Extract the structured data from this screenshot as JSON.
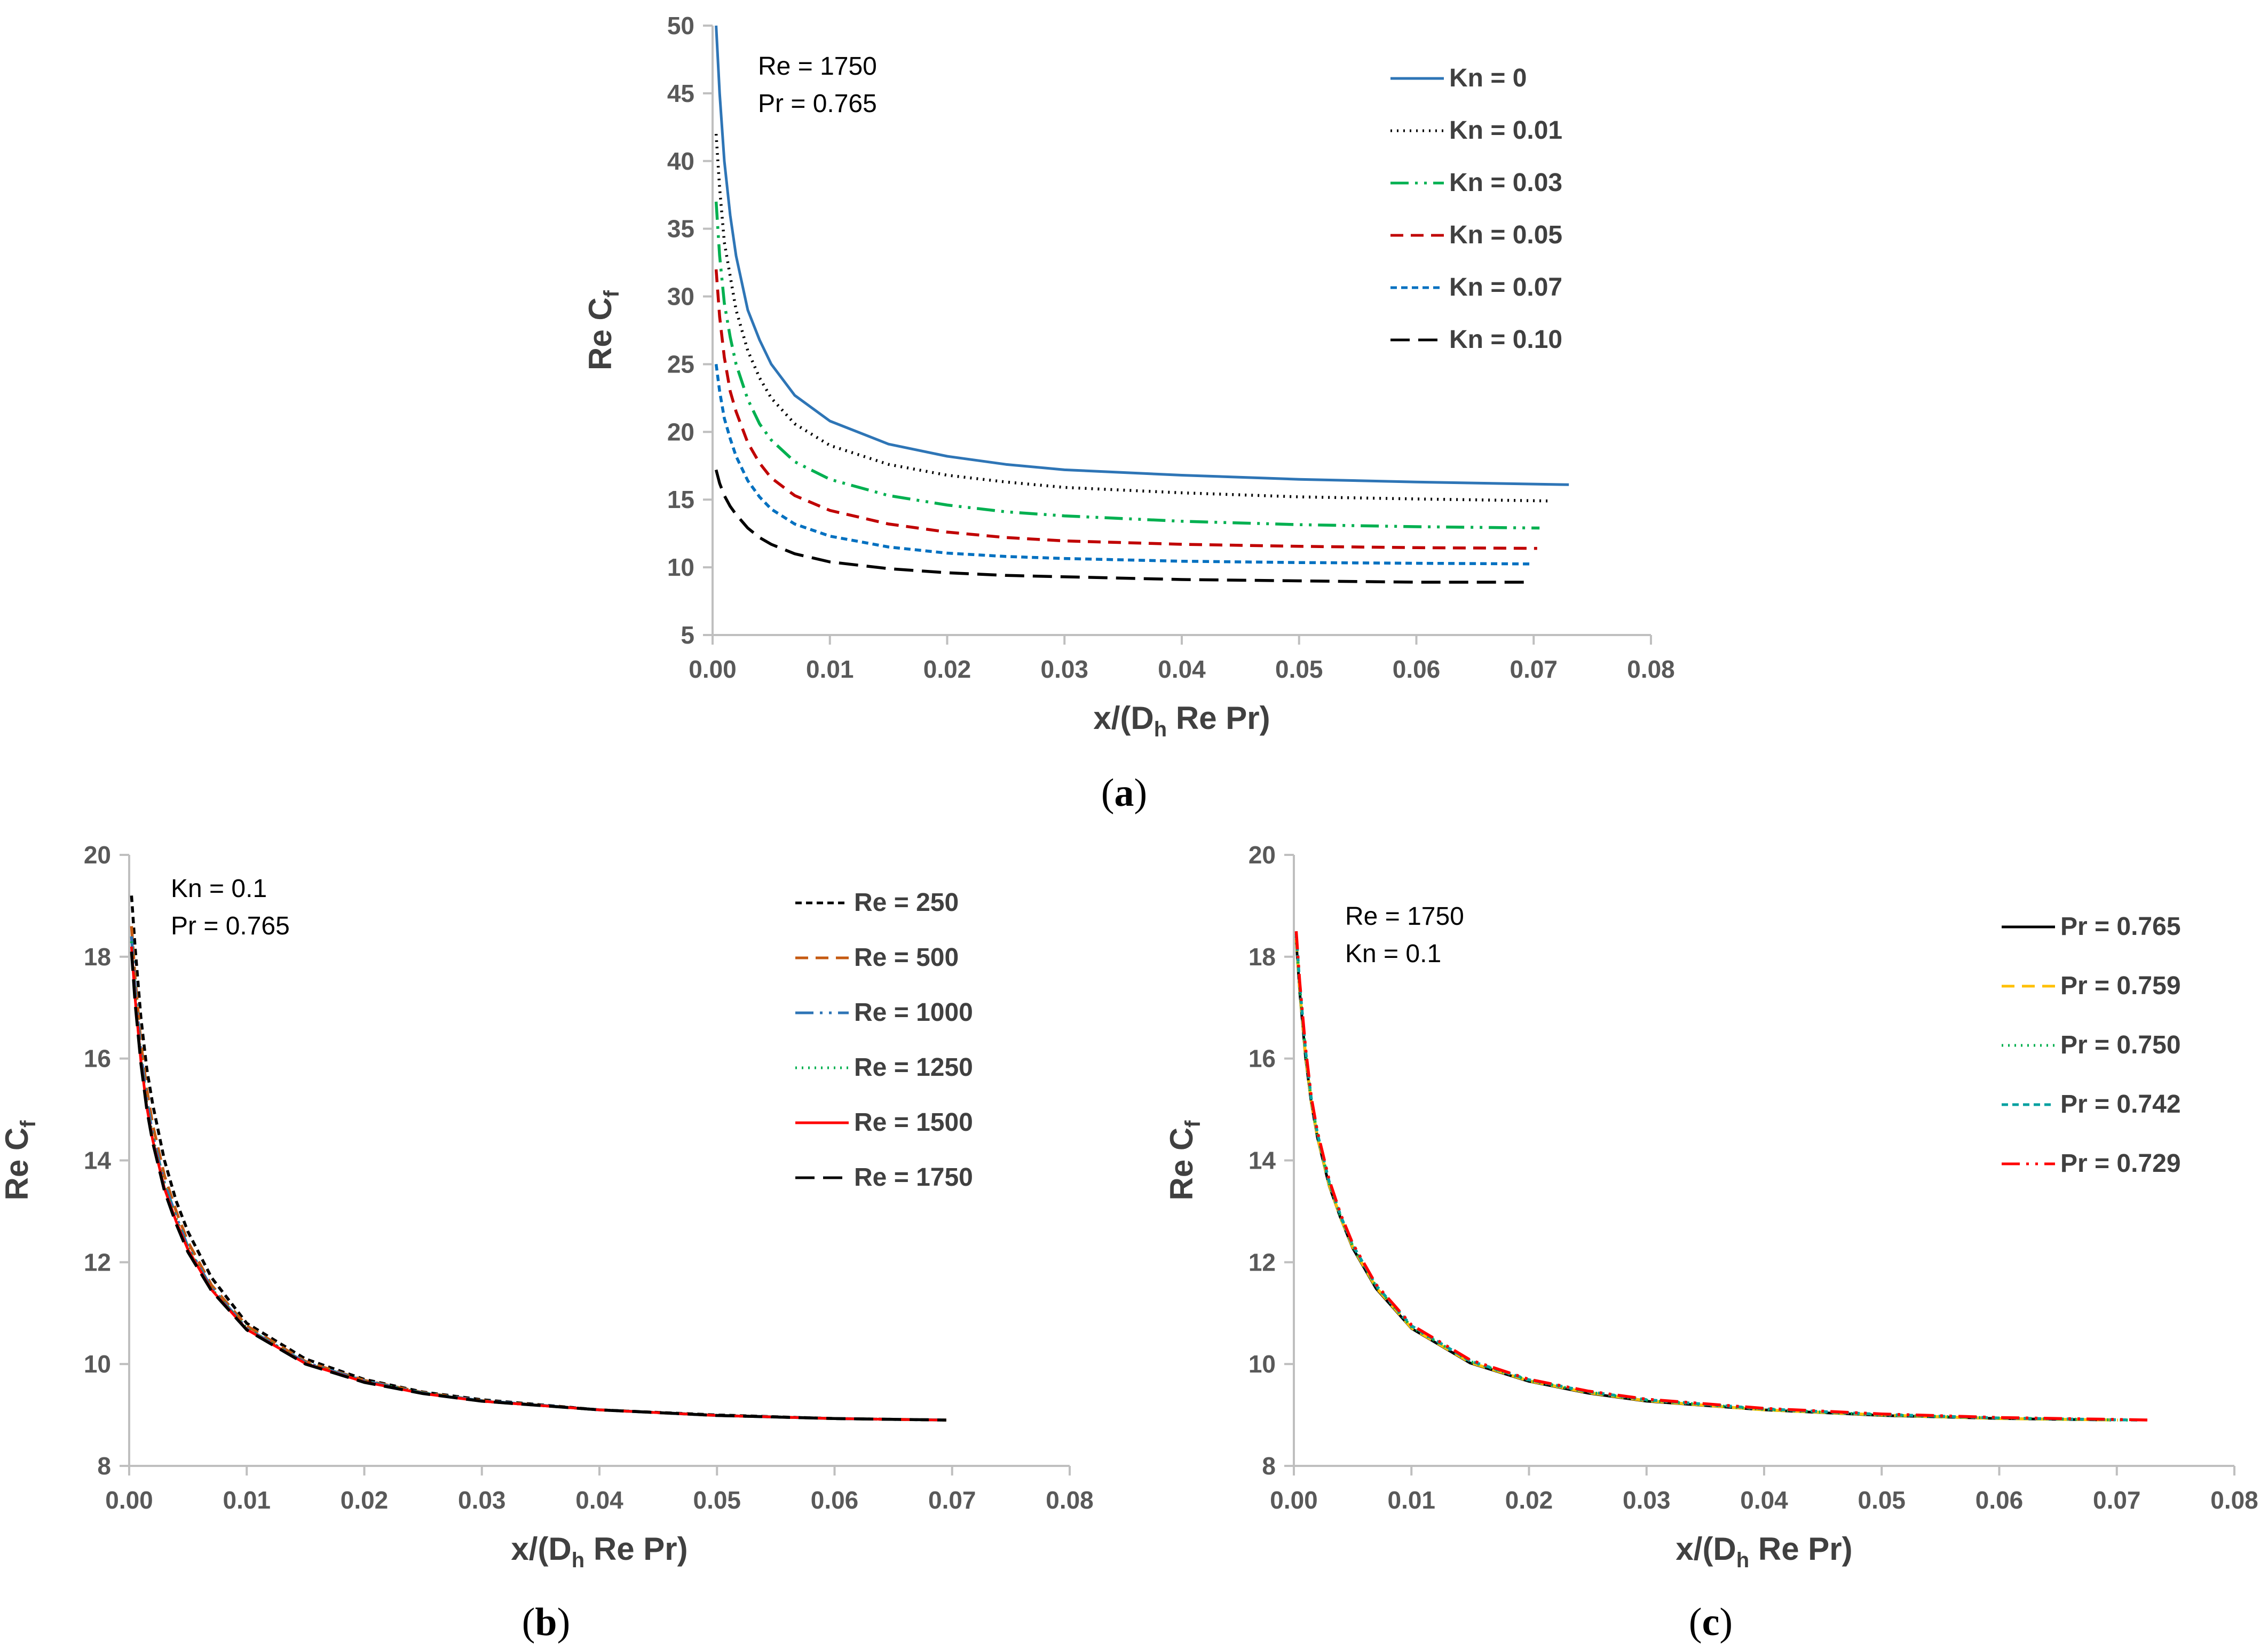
{
  "chart_data": [
    {
      "panel": "a",
      "panel_label": "a",
      "type": "line",
      "xlabel": "x/(D",
      "xlabel_sub": "h",
      "xlabel_rest": " Re Pr)",
      "ylabel": "Re C",
      "ylabel_sub": "f",
      "xlim": [
        0,
        0.08
      ],
      "ylim": [
        5,
        50
      ],
      "xticks": [
        "0.00",
        "0.01",
        "0.02",
        "0.03",
        "0.04",
        "0.05",
        "0.06",
        "0.07",
        "0.08"
      ],
      "yticks": [
        "5",
        "10",
        "15",
        "20",
        "25",
        "30",
        "35",
        "40",
        "45",
        "50"
      ],
      "annotations": [
        "Re = 1750",
        "Pr = 0.765"
      ],
      "series": [
        {
          "name": "Kn = 0",
          "color": "#2e75b6",
          "dash": "solid",
          "x": [
            0.0003,
            0.0006,
            0.001,
            0.0015,
            0.002,
            0.003,
            0.004,
            0.005,
            0.007,
            0.01,
            0.015,
            0.02,
            0.025,
            0.03,
            0.04,
            0.05,
            0.06,
            0.073
          ],
          "y": [
            50,
            45,
            40,
            36,
            33,
            29,
            26.8,
            25,
            22.7,
            20.8,
            19.1,
            18.2,
            17.6,
            17.2,
            16.8,
            16.5,
            16.3,
            16.1
          ]
        },
        {
          "name": "Kn = 0.01",
          "color": "#000000",
          "dash": "dotted",
          "x": [
            0.0003,
            0.0006,
            0.001,
            0.0015,
            0.002,
            0.003,
            0.004,
            0.005,
            0.007,
            0.01,
            0.015,
            0.02,
            0.025,
            0.03,
            0.04,
            0.05,
            0.06,
            0.0715
          ],
          "y": [
            42,
            38,
            34,
            31.5,
            29,
            26,
            24,
            22.5,
            20.6,
            19,
            17.6,
            16.8,
            16.3,
            15.9,
            15.5,
            15.2,
            15.05,
            14.9
          ]
        },
        {
          "name": "Kn = 0.03",
          "color": "#00b050",
          "dash": "dashdotdot",
          "x": [
            0.0003,
            0.0006,
            0.001,
            0.0015,
            0.002,
            0.003,
            0.004,
            0.005,
            0.007,
            0.01,
            0.015,
            0.02,
            0.025,
            0.03,
            0.04,
            0.05,
            0.06,
            0.0705
          ],
          "y": [
            37,
            33,
            29.5,
            27,
            25,
            22.4,
            20.6,
            19.4,
            17.8,
            16.5,
            15.3,
            14.6,
            14.1,
            13.8,
            13.4,
            13.15,
            13.0,
            12.9
          ]
        },
        {
          "name": "Kn = 0.05",
          "color": "#c00000",
          "dash": "dashed",
          "x": [
            0.0003,
            0.0006,
            0.001,
            0.0015,
            0.002,
            0.003,
            0.004,
            0.005,
            0.007,
            0.01,
            0.015,
            0.02,
            0.025,
            0.03,
            0.04,
            0.05,
            0.06,
            0.0703
          ],
          "y": [
            32,
            28.5,
            25.5,
            23,
            21.5,
            19.2,
            17.7,
            16.6,
            15.3,
            14.2,
            13.2,
            12.6,
            12.2,
            11.95,
            11.7,
            11.55,
            11.45,
            11.4
          ]
        },
        {
          "name": "Kn = 0.07",
          "color": "#0070c0",
          "dash": "shortdash",
          "x": [
            0.0003,
            0.0006,
            0.001,
            0.0015,
            0.002,
            0.003,
            0.004,
            0.005,
            0.007,
            0.01,
            0.015,
            0.02,
            0.025,
            0.03,
            0.04,
            0.05,
            0.06,
            0.0698
          ],
          "y": [
            25,
            23,
            21,
            19.5,
            18.2,
            16.4,
            15.2,
            14.3,
            13.2,
            12.3,
            11.5,
            11.05,
            10.8,
            10.65,
            10.45,
            10.35,
            10.3,
            10.25
          ]
        },
        {
          "name": "Kn = 0.10",
          "color": "#000000",
          "dash": "longdash",
          "x": [
            0.0003,
            0.0006,
            0.001,
            0.0015,
            0.002,
            0.003,
            0.004,
            0.005,
            0.007,
            0.01,
            0.015,
            0.02,
            0.025,
            0.03,
            0.04,
            0.05,
            0.06,
            0.0695
          ],
          "y": [
            17.2,
            16.2,
            15.3,
            14.5,
            13.9,
            12.9,
            12.2,
            11.7,
            11.0,
            10.4,
            9.9,
            9.6,
            9.4,
            9.3,
            9.1,
            9.0,
            8.9,
            8.9
          ]
        }
      ]
    },
    {
      "panel": "b",
      "panel_label": "b",
      "type": "line",
      "xlabel": "x/(D",
      "xlabel_sub": "h",
      "xlabel_rest": " Re Pr)",
      "ylabel": "Re C",
      "ylabel_sub": "f",
      "xlim": [
        0,
        0.08
      ],
      "ylim": [
        8,
        20
      ],
      "xticks": [
        "0.00",
        "0.01",
        "0.02",
        "0.03",
        "0.04",
        "0.05",
        "0.06",
        "0.07",
        "0.08"
      ],
      "yticks": [
        "8",
        "10",
        "12",
        "14",
        "16",
        "18",
        "20"
      ],
      "annotations": [
        "Kn = 0.1",
        "Pr = 0.765"
      ],
      "series": [
        {
          "name": "Re = 250",
          "color": "#000000",
          "dash": "shortdash",
          "x": [
            0.0002,
            0.0005,
            0.001,
            0.0015,
            0.002,
            0.003,
            0.004,
            0.005,
            0.007,
            0.01,
            0.015,
            0.02,
            0.025,
            0.03,
            0.04,
            0.05,
            0.06,
            0.0695
          ],
          "y": [
            19.2,
            18.2,
            16.8,
            15.8,
            15.1,
            14.0,
            13.2,
            12.6,
            11.7,
            10.8,
            10.1,
            9.7,
            9.45,
            9.3,
            9.1,
            9.0,
            8.93,
            8.9
          ]
        },
        {
          "name": "Re = 500",
          "color": "#c55a11",
          "dash": "dashed",
          "x": [
            0.0002,
            0.0005,
            0.001,
            0.0015,
            0.002,
            0.003,
            0.004,
            0.005,
            0.007,
            0.01,
            0.015,
            0.02,
            0.025,
            0.03,
            0.04,
            0.05,
            0.06,
            0.0695
          ],
          "y": [
            18.6,
            17.6,
            16.3,
            15.4,
            14.7,
            13.7,
            13.0,
            12.4,
            11.55,
            10.75,
            10.05,
            9.68,
            9.44,
            9.28,
            9.1,
            8.99,
            8.93,
            8.9
          ]
        },
        {
          "name": "Re = 1000",
          "color": "#2e75b6",
          "dash": "dashdotdot",
          "x": [
            0.0002,
            0.0005,
            0.001,
            0.0015,
            0.002,
            0.003,
            0.004,
            0.005,
            0.007,
            0.01,
            0.015,
            0.02,
            0.025,
            0.03,
            0.04,
            0.05,
            0.06,
            0.0695
          ],
          "y": [
            18.4,
            17.4,
            16.1,
            15.2,
            14.5,
            13.55,
            12.9,
            12.3,
            11.5,
            10.7,
            10.03,
            9.67,
            9.43,
            9.28,
            9.1,
            8.99,
            8.93,
            8.9
          ]
        },
        {
          "name": "Re = 1250",
          "color": "#00b050",
          "dash": "dotted",
          "x": [
            0.0002,
            0.0005,
            0.001,
            0.0015,
            0.002,
            0.003,
            0.004,
            0.005,
            0.007,
            0.01,
            0.015,
            0.02,
            0.025,
            0.03,
            0.04,
            0.05,
            0.06,
            0.0695
          ],
          "y": [
            18.3,
            17.3,
            16.0,
            15.1,
            14.45,
            13.5,
            12.85,
            12.28,
            11.48,
            10.7,
            10.02,
            9.66,
            9.43,
            9.27,
            9.1,
            8.99,
            8.93,
            8.9
          ]
        },
        {
          "name": "Re = 1500",
          "color": "#ff0000",
          "dash": "solid",
          "x": [
            0.0002,
            0.0005,
            0.001,
            0.0015,
            0.002,
            0.003,
            0.004,
            0.005,
            0.007,
            0.01,
            0.015,
            0.02,
            0.025,
            0.03,
            0.04,
            0.05,
            0.06,
            0.0695
          ],
          "y": [
            18.2,
            17.2,
            15.95,
            15.05,
            14.4,
            13.45,
            12.8,
            12.25,
            11.46,
            10.68,
            10.01,
            9.65,
            9.42,
            9.27,
            9.1,
            8.99,
            8.93,
            8.9
          ]
        },
        {
          "name": "Re = 1750",
          "color": "#000000",
          "dash": "longdash",
          "x": [
            0.0002,
            0.0005,
            0.001,
            0.0015,
            0.002,
            0.003,
            0.004,
            0.005,
            0.007,
            0.01,
            0.015,
            0.02,
            0.025,
            0.03,
            0.04,
            0.05,
            0.06,
            0.0695
          ],
          "y": [
            18.1,
            17.1,
            15.9,
            15.0,
            14.35,
            13.4,
            12.75,
            12.2,
            11.44,
            10.67,
            10.0,
            9.64,
            9.42,
            9.27,
            9.1,
            8.99,
            8.93,
            8.9
          ]
        }
      ]
    },
    {
      "panel": "c",
      "panel_label": "c",
      "type": "line",
      "xlabel": "x/(D",
      "xlabel_sub": "h",
      "xlabel_rest": " Re Pr)",
      "ylabel": "Re C",
      "ylabel_sub": "f",
      "xlim": [
        0,
        0.08
      ],
      "ylim": [
        8,
        20
      ],
      "xticks": [
        "0.00",
        "0.01",
        "0.02",
        "0.03",
        "0.04",
        "0.05",
        "0.06",
        "0.07",
        "0.08"
      ],
      "yticks": [
        "8",
        "10",
        "12",
        "14",
        "16",
        "18",
        "20"
      ],
      "annotations": [
        "Re = 1750",
        "Kn = 0.1"
      ],
      "series": [
        {
          "name": "Pr = 0.765",
          "color": "#000000",
          "dash": "solid",
          "x": [
            0.0002,
            0.0005,
            0.001,
            0.0015,
            0.002,
            0.003,
            0.004,
            0.005,
            0.007,
            0.01,
            0.015,
            0.02,
            0.025,
            0.03,
            0.04,
            0.05,
            0.06,
            0.0695
          ],
          "y": [
            18.3,
            17.3,
            16.0,
            15.1,
            14.45,
            13.5,
            12.85,
            12.28,
            11.48,
            10.7,
            10.02,
            9.66,
            9.43,
            9.27,
            9.1,
            8.99,
            8.93,
            8.9
          ]
        },
        {
          "name": "Pr = 0.759",
          "color": "#ffc000",
          "dash": "dashed",
          "x": [
            0.0002,
            0.0005,
            0.001,
            0.0015,
            0.002,
            0.003,
            0.004,
            0.005,
            0.007,
            0.01,
            0.015,
            0.02,
            0.025,
            0.03,
            0.04,
            0.05,
            0.06,
            0.0701
          ],
          "y": [
            18.35,
            17.35,
            16.05,
            15.12,
            14.47,
            13.52,
            12.86,
            12.3,
            11.5,
            10.71,
            10.03,
            9.67,
            9.44,
            9.28,
            9.1,
            9.0,
            8.93,
            8.9
          ]
        },
        {
          "name": "Pr = 0.750",
          "color": "#00b050",
          "dash": "dotted",
          "x": [
            0.0002,
            0.0005,
            0.001,
            0.0015,
            0.002,
            0.003,
            0.004,
            0.005,
            0.007,
            0.01,
            0.015,
            0.02,
            0.025,
            0.03,
            0.04,
            0.05,
            0.06,
            0.071
          ],
          "y": [
            18.4,
            17.4,
            16.1,
            15.15,
            14.5,
            13.55,
            12.88,
            12.32,
            11.52,
            10.73,
            10.05,
            9.68,
            9.45,
            9.29,
            9.11,
            9.0,
            8.94,
            8.9
          ]
        },
        {
          "name": "Pr = 0.742",
          "color": "#00a0a0",
          "dash": "shortdash",
          "x": [
            0.0002,
            0.0005,
            0.001,
            0.0015,
            0.002,
            0.003,
            0.004,
            0.005,
            0.007,
            0.01,
            0.015,
            0.02,
            0.025,
            0.03,
            0.04,
            0.05,
            0.06,
            0.0718
          ],
          "y": [
            18.45,
            17.45,
            16.15,
            15.18,
            14.53,
            13.58,
            12.9,
            12.34,
            11.54,
            10.75,
            10.06,
            9.69,
            9.46,
            9.3,
            9.12,
            9.01,
            8.94,
            8.9
          ]
        },
        {
          "name": "Pr = 0.729",
          "color": "#ff0000",
          "dash": "dashdotdot",
          "x": [
            0.0002,
            0.0005,
            0.001,
            0.0015,
            0.002,
            0.003,
            0.004,
            0.005,
            0.007,
            0.01,
            0.015,
            0.02,
            0.025,
            0.03,
            0.04,
            0.05,
            0.06,
            0.073
          ],
          "y": [
            18.5,
            17.5,
            16.2,
            15.22,
            14.57,
            13.62,
            12.93,
            12.37,
            11.56,
            10.77,
            10.08,
            9.7,
            9.47,
            9.31,
            9.13,
            9.02,
            8.95,
            8.9
          ]
        }
      ]
    }
  ]
}
